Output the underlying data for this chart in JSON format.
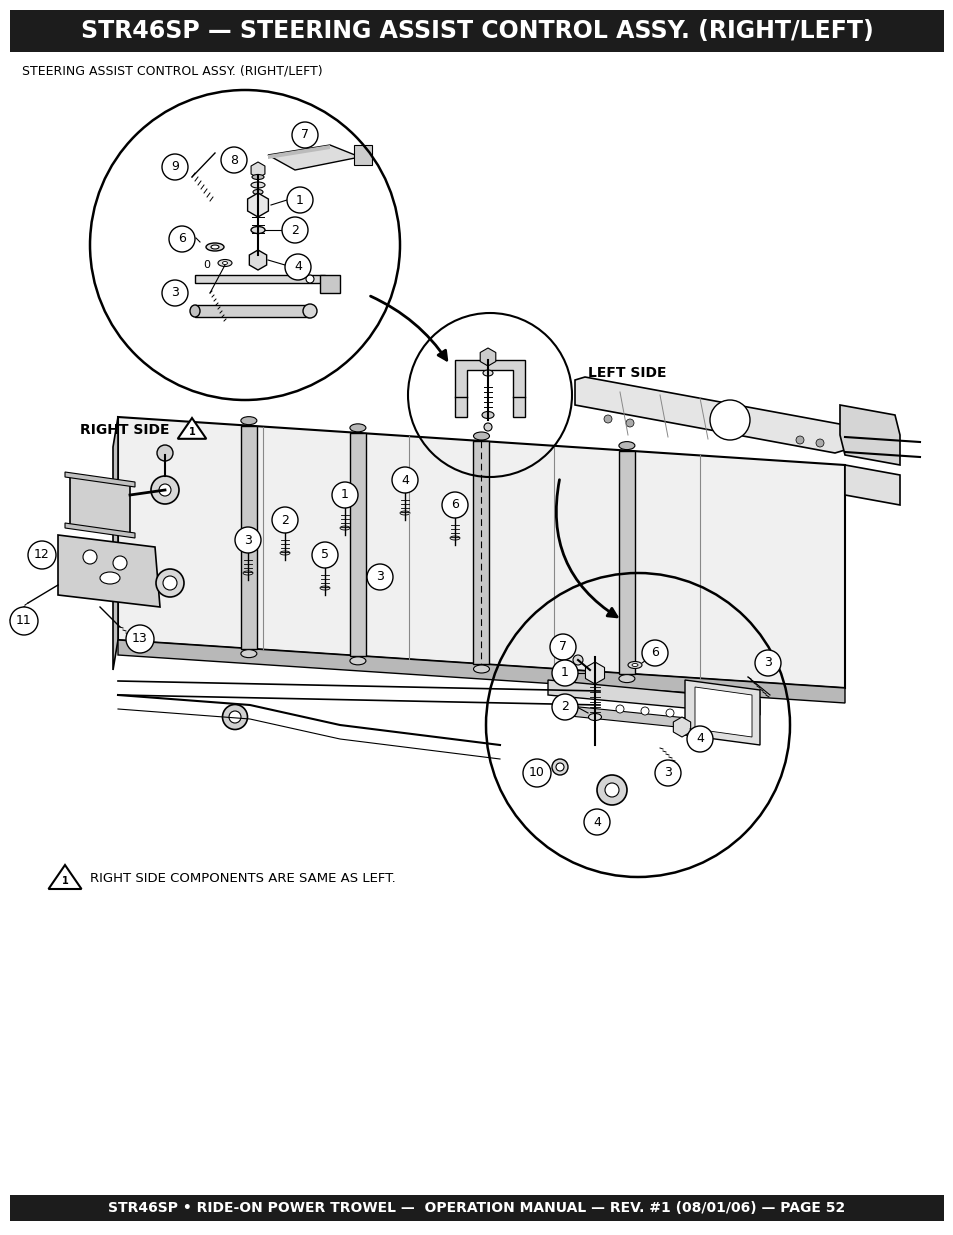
{
  "title": "STR46SP — STEERING ASSIST CONTROL ASSY. (RIGHT/LEFT)",
  "subtitle": "STEERING ASSIST CONTROL ASSY. (RIGHT/LEFT)",
  "footer": "STR46SP • RIDE-ON POWER TROWEL —  OPERATION MANUAL — REV. #1 (08/01/06) — PAGE 52",
  "title_bg": "#1c1c1c",
  "title_color": "#ffffff",
  "footer_bg": "#1c1c1c",
  "footer_color": "#ffffff",
  "bg_color": "#ffffff",
  "left_side_label": "LEFT SIDE",
  "right_side_label": "RIGHT SIDE",
  "warning_text": "RIGHT SIDE COMPONENTS ARE SAME AS LEFT.",
  "title_fontsize": 17,
  "subtitle_fontsize": 9,
  "footer_fontsize": 10,
  "label_fontsize": 9
}
